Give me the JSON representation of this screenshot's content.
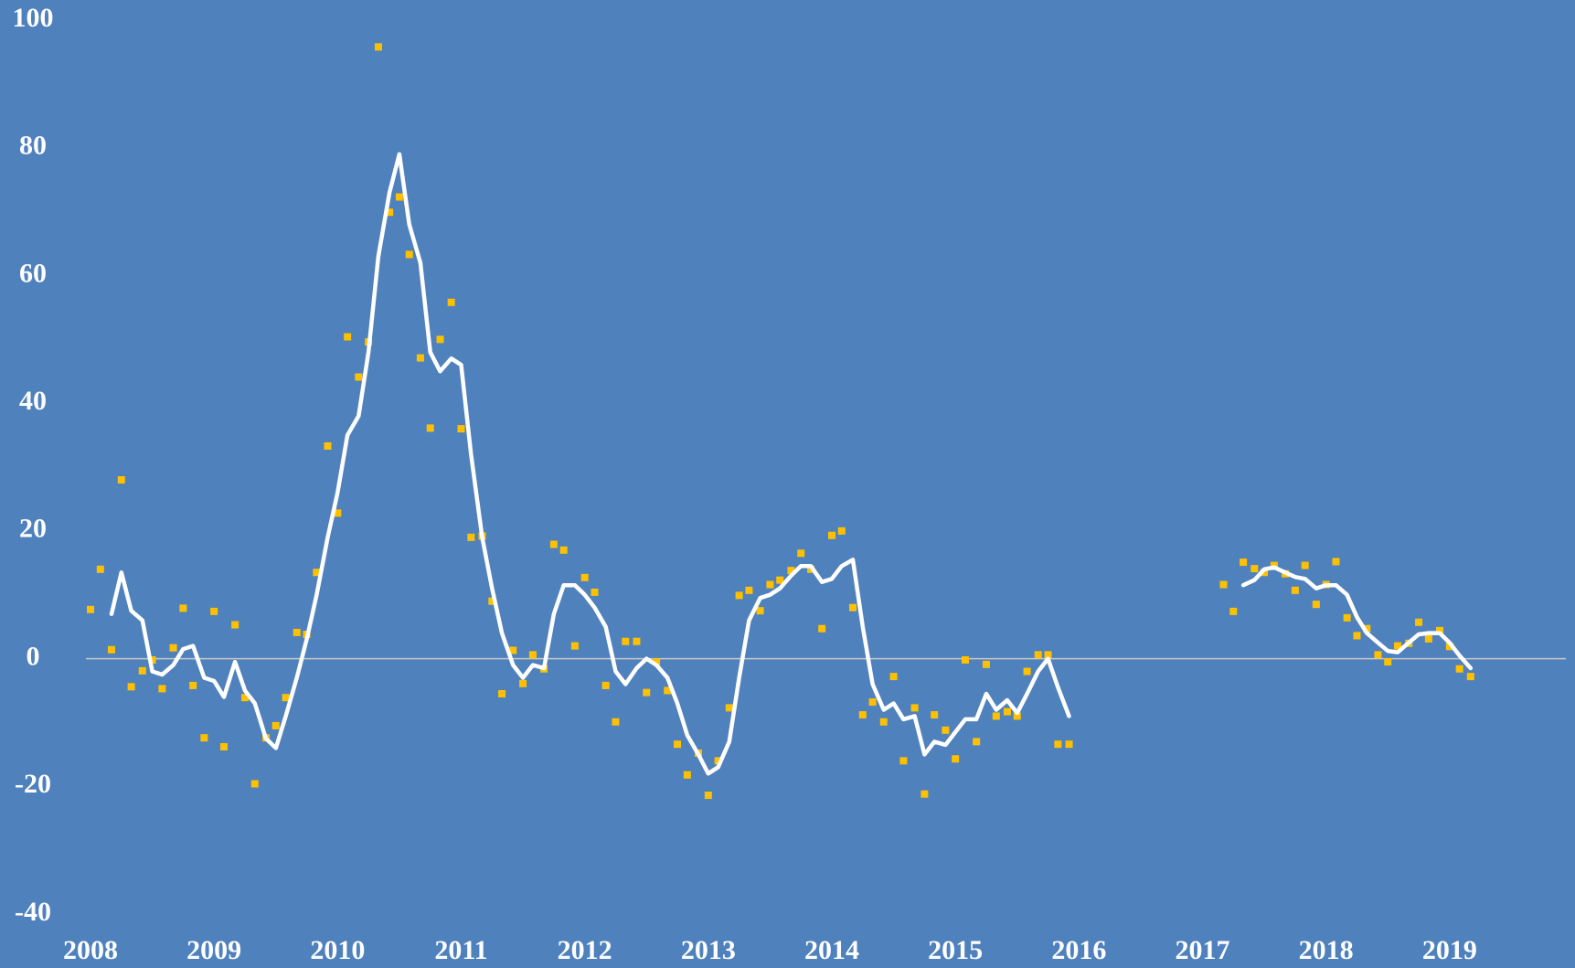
{
  "chart_data": {
    "type": "line",
    "background": "#4f81bd",
    "xlim": [
      2008,
      2020
    ],
    "xticks": [
      2008,
      2009,
      2010,
      2011,
      2012,
      2013,
      2014,
      2015,
      2016,
      2017,
      2018,
      2019
    ],
    "ylim": [
      -40,
      100
    ],
    "yticks": [
      -40,
      -20,
      0,
      20,
      40,
      60,
      80,
      100
    ],
    "grid": false,
    "x": [
      2008,
      2008.08,
      2008.17,
      2008.25,
      2008.33,
      2008.42,
      2008.5,
      2008.58,
      2008.67,
      2008.75,
      2008.83,
      2008.92,
      2009,
      2009.08,
      2009.17,
      2009.25,
      2009.33,
      2009.42,
      2009.5,
      2009.58,
      2009.67,
      2009.75,
      2009.83,
      2009.92,
      2010,
      2010.08,
      2010.17,
      2010.25,
      2010.33,
      2010.42,
      2010.5,
      2010.58,
      2010.67,
      2010.75,
      2010.83,
      2010.92,
      2011,
      2011.08,
      2011.17,
      2011.25,
      2011.33,
      2011.42,
      2011.5,
      2011.58,
      2011.67,
      2011.75,
      2011.83,
      2011.92,
      2012,
      2012.08,
      2012.17,
      2012.25,
      2012.33,
      2012.42,
      2012.5,
      2012.58,
      2012.67,
      2012.75,
      2012.83,
      2012.92,
      2013,
      2013.08,
      2013.17,
      2013.25,
      2013.33,
      2013.42,
      2013.5,
      2013.58,
      2013.67,
      2013.75,
      2013.83,
      2013.92,
      2014,
      2014.08,
      2014.17,
      2014.25,
      2014.33,
      2014.42,
      2014.5,
      2014.58,
      2014.67,
      2014.75,
      2014.83,
      2014.92,
      2015,
      2015.08,
      2015.17,
      2015.25,
      2015.33,
      2015.42,
      2015.5,
      2015.58,
      2015.67,
      2015.75,
      2015.83,
      2015.92,
      2016,
      2016.08,
      2016.17,
      2016.25,
      2016.33,
      2016.42,
      2016.5,
      2016.58,
      2016.67,
      2016.75,
      2016.83,
      2016.92,
      2017,
      2017.08,
      2017.17,
      2017.25,
      2017.33,
      2017.42,
      2017.5,
      2017.58,
      2017.67,
      2017.75,
      2017.83,
      2017.92,
      2018,
      2018.08,
      2018.17,
      2018.25,
      2018.33,
      2018.42,
      2018.5,
      2018.58,
      2018.67,
      2018.75,
      2018.83,
      2018.92,
      2019,
      2019.08,
      2019.17
    ],
    "series": [
      {
        "mode": "markers",
        "color": "#ffc000",
        "values": [
          7.7,
          14,
          1.4,
          28,
          -4.4,
          -1.9,
          -0.2,
          -4.7,
          1.7,
          7.9,
          -4.2,
          -12.4,
          7.4,
          -13.8,
          5.3,
          -6.1,
          -19.6,
          -12.4,
          -10.5,
          -6.1,
          4.1,
          3.8,
          13.5,
          33.3,
          22.8,
          50.4,
          44.1,
          49.6,
          95.8,
          69.9,
          72.3,
          63.3,
          47.1,
          36.1,
          50,
          55.8,
          36,
          19,
          19.2,
          9,
          -5.5,
          1.3,
          -3.9,
          0.6,
          -1.6,
          17.9,
          17,
          2,
          12.7,
          10.4,
          -4.2,
          -9.9,
          2.7,
          2.7,
          -5.3,
          -0.5,
          -5,
          -13.4,
          -18.2,
          -14.8,
          -21.4,
          -16,
          -7.7,
          9.9,
          10.7,
          7.5,
          11.6,
          12.3,
          13.8,
          16.5,
          14,
          4.7,
          19.3,
          20,
          8,
          -8.8,
          -6.8,
          -9.9,
          -2.8,
          -16,
          -7.7,
          -21.2,
          -8.8,
          -11.2,
          -15.7,
          -0.2,
          -13,
          -0.9,
          -9,
          -8.3,
          -9,
          -2,
          0.6,
          0.6,
          -13.4,
          -13.4,
          null,
          null,
          null,
          null,
          null,
          null,
          null,
          null,
          null,
          null,
          null,
          null,
          null,
          null,
          11.6,
          7.4,
          15.1,
          14.1,
          13.5,
          14.6,
          13.3,
          10.7,
          14.6,
          8.5,
          11.6,
          15.2,
          6.4,
          3.6,
          4.7,
          0.6,
          -0.5,
          2,
          2.4,
          5.7,
          3.1,
          4.4,
          1.9,
          -1.6,
          -2.8
        ]
      },
      {
        "mode": "line",
        "color": "#ffffff",
        "values": [
          null,
          null,
          7,
          13.5,
          7.5,
          6,
          -2,
          -2.5,
          -1,
          1.5,
          2,
          -3,
          -3.5,
          -6,
          -0.5,
          -5,
          -7,
          -12.5,
          -14,
          -9,
          -3,
          3,
          10,
          19,
          26,
          35,
          38,
          48,
          63,
          73,
          79,
          68,
          62,
          48,
          45,
          47,
          46,
          32,
          19,
          11,
          4,
          -1,
          -3,
          -1,
          -1.5,
          7,
          11.5,
          11.5,
          10,
          8,
          5,
          -2,
          -4,
          -1.5,
          0,
          -1,
          -3,
          -7,
          -12,
          -15,
          -18,
          -17,
          -13,
          -3,
          6,
          9.5,
          10,
          11,
          13,
          14.5,
          14.5,
          12,
          12.5,
          14.5,
          15.5,
          5,
          -4,
          -8,
          -7,
          -9.5,
          -9,
          -15,
          -13,
          -13.5,
          -11.5,
          -9.5,
          -9.5,
          -5.5,
          -8,
          -6.5,
          -8.5,
          -5.5,
          -2,
          0,
          -4.5,
          -9,
          null,
          null,
          null,
          null,
          null,
          null,
          null,
          null,
          null,
          null,
          null,
          null,
          null,
          null,
          null,
          null,
          11.5,
          12.3,
          14,
          14.3,
          13.5,
          12.8,
          12.5,
          11,
          11.5,
          11.5,
          10,
          6.5,
          4,
          2.5,
          1.2,
          1,
          2.5,
          3.8,
          4,
          4,
          2.5,
          0.5,
          -1.5
        ]
      }
    ]
  }
}
